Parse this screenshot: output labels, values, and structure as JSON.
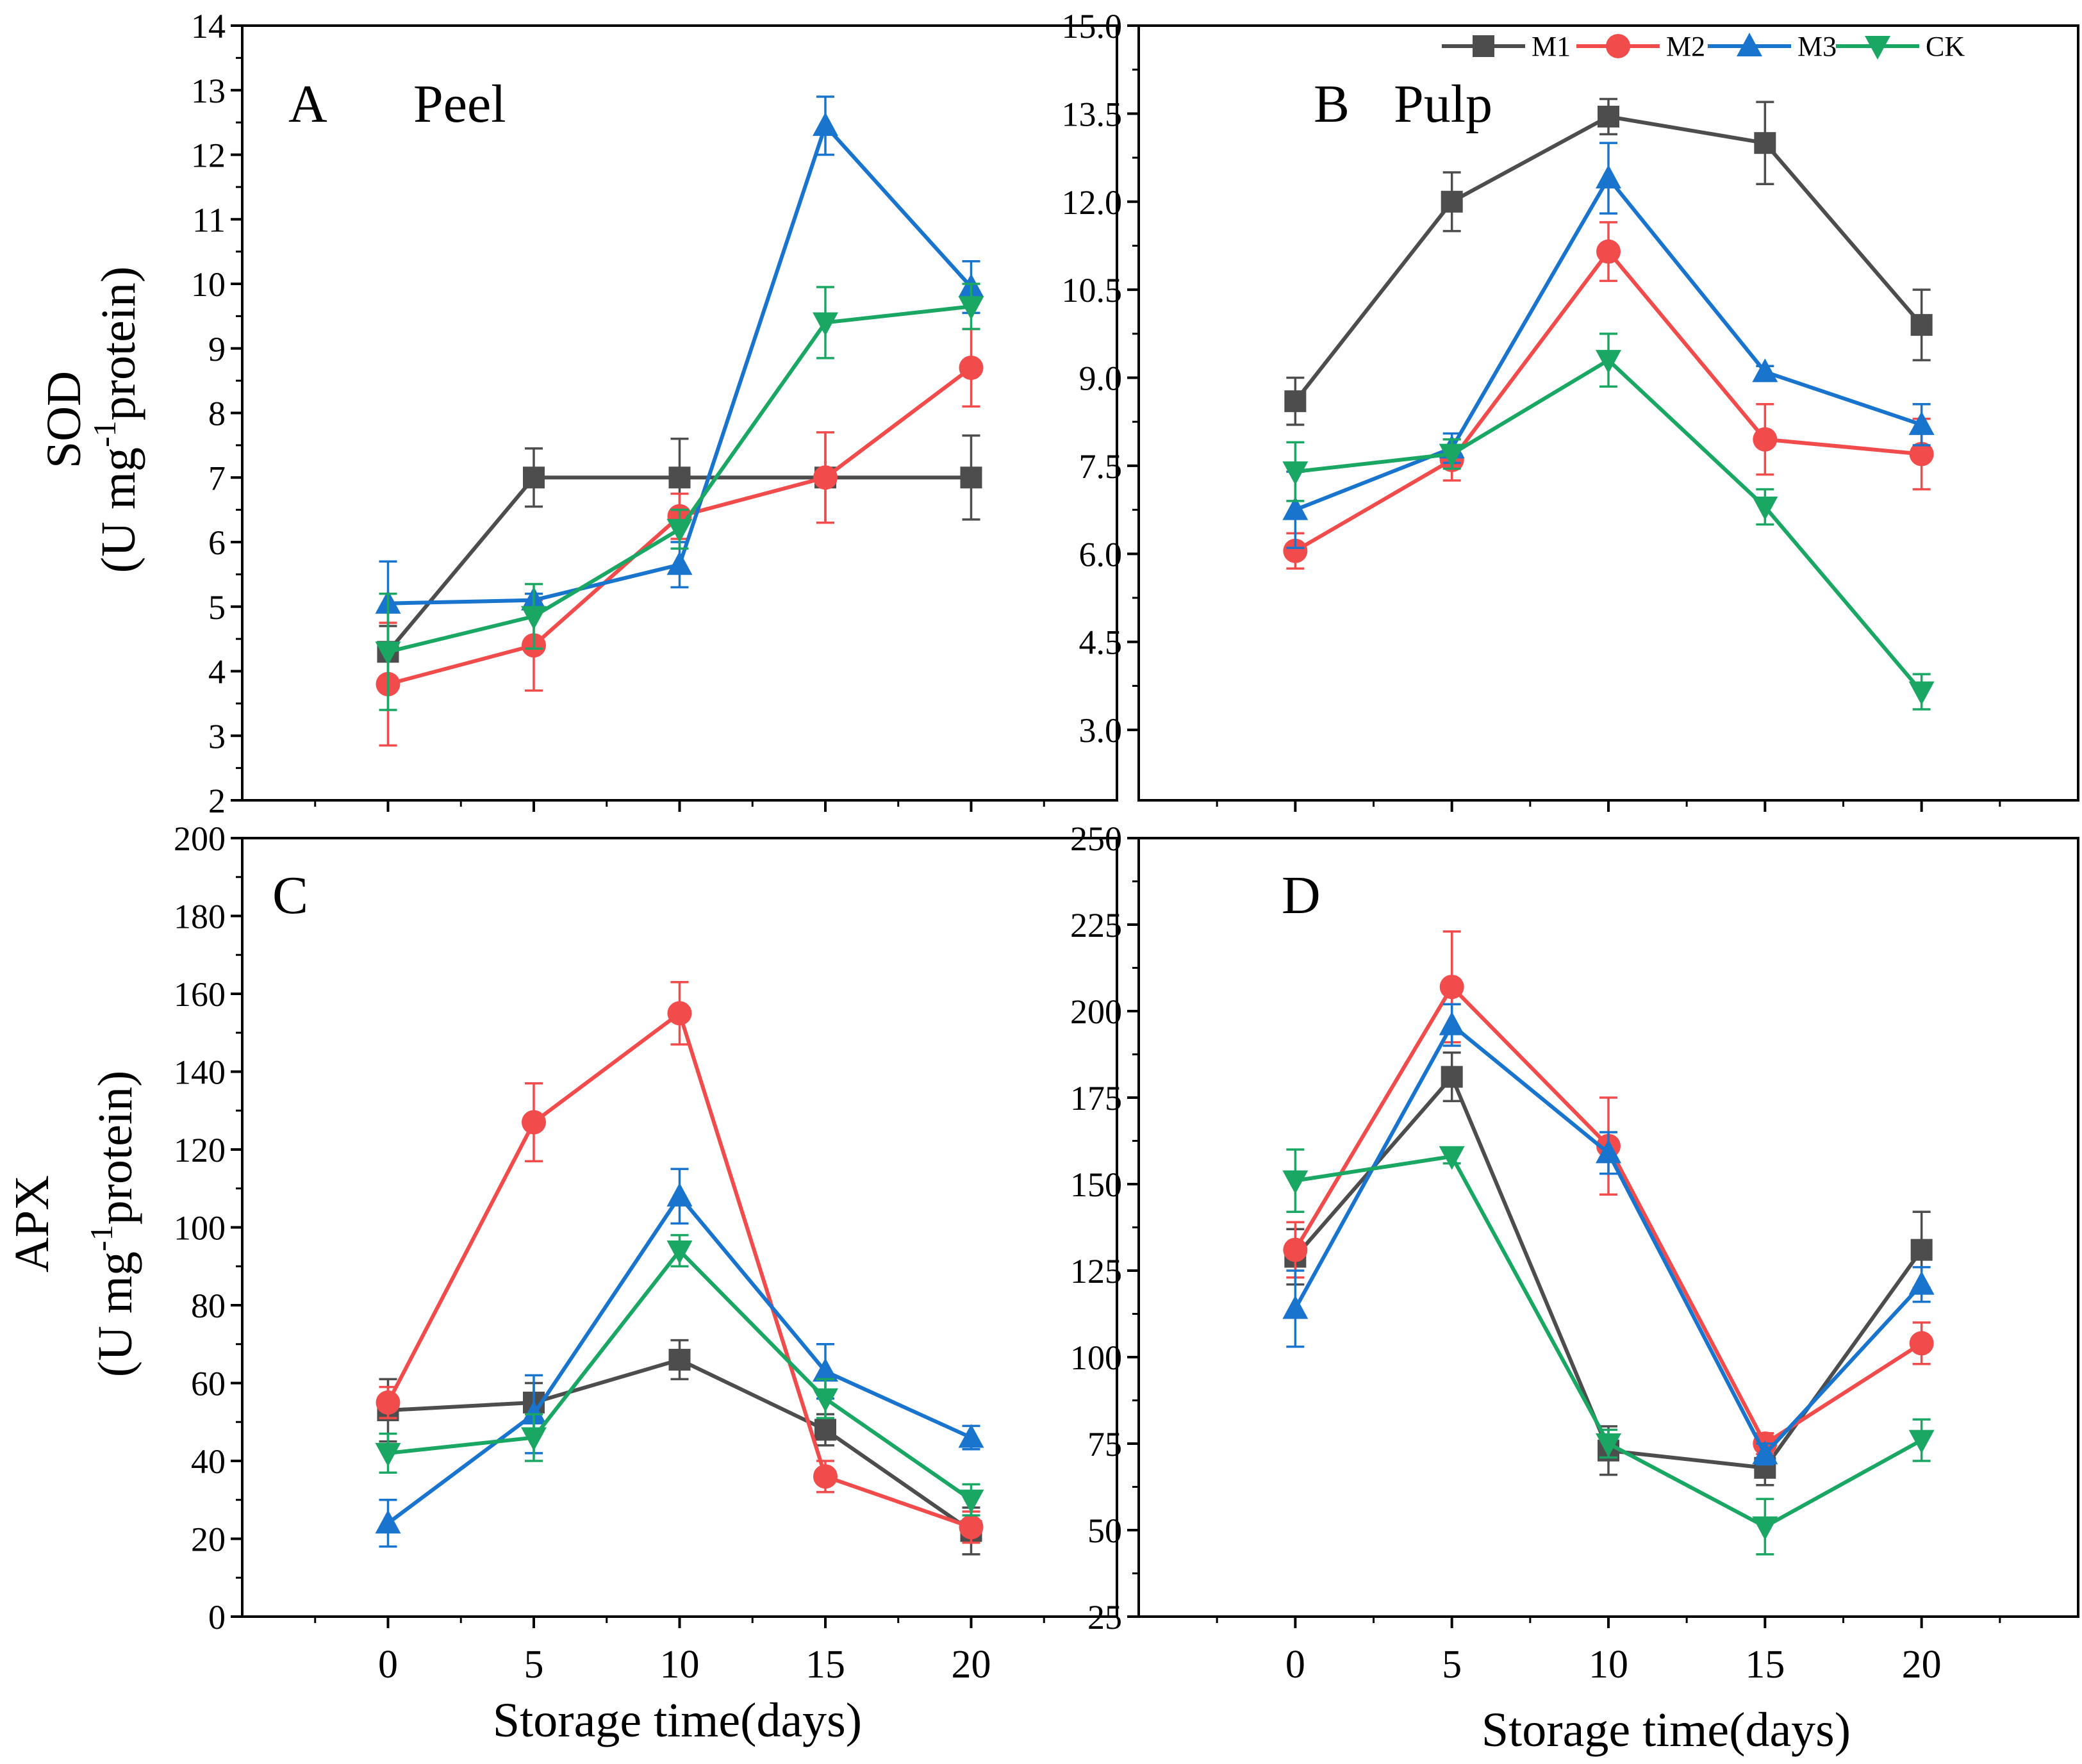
{
  "figure": {
    "x_axis_title": "Storage time(days)",
    "legend": [
      {
        "name": "M1",
        "color": "#4d4d4d",
        "marker": "square"
      },
      {
        "name": "M2",
        "color": "#f24b4b",
        "marker": "circle"
      },
      {
        "name": "M3",
        "color": "#1874cd",
        "marker": "triangle-up"
      },
      {
        "name": "CK",
        "color": "#1aa764",
        "marker": "triangle-down"
      }
    ],
    "ylabels": {
      "sod": {
        "main": "SOD",
        "unit_pre": "(U mg",
        "unit_sup": "-1",
        "unit_post": "protein)"
      },
      "apx": {
        "main": "APX",
        "unit_pre": "(U mg",
        "unit_sup": "-1",
        "unit_post": "protein)"
      }
    }
  },
  "chart_data": [
    {
      "panel": "A",
      "title": "Peel",
      "type": "line",
      "xlabel": "",
      "ylabel": "SOD (U mg-1 protein)",
      "x": [
        0,
        5,
        10,
        15,
        20
      ],
      "xlim": [
        -5,
        25
      ],
      "ylim": [
        2,
        14
      ],
      "yticks": [
        2,
        3,
        4,
        5,
        6,
        7,
        8,
        9,
        10,
        11,
        12,
        13,
        14
      ],
      "yticklabels": [
        "2",
        "3",
        "4",
        "5",
        "6",
        "7",
        "8",
        "9",
        "10",
        "11",
        "12",
        "13",
        "14"
      ],
      "xticks": [],
      "series": [
        {
          "name": "M1",
          "values": [
            4.3,
            7.0,
            7.0,
            7.0,
            7.0
          ],
          "errors": [
            0.4,
            0.45,
            0.6,
            0.7,
            0.65
          ]
        },
        {
          "name": "M2",
          "values": [
            3.8,
            4.4,
            6.4,
            7.0,
            8.7
          ],
          "errors": [
            0.95,
            0.7,
            0.35,
            0.7,
            0.6
          ]
        },
        {
          "name": "M3",
          "values": [
            5.05,
            5.1,
            5.65,
            12.45,
            9.95
          ],
          "errors": [
            0.65,
            0.1,
            0.35,
            0.45,
            0.4
          ]
        },
        {
          "name": "CK",
          "values": [
            4.3,
            4.85,
            6.2,
            9.4,
            9.65
          ],
          "errors": [
            0.9,
            0.5,
            0.3,
            0.55,
            0.35
          ]
        }
      ]
    },
    {
      "panel": "B",
      "title": "Pulp",
      "type": "line",
      "xlabel": "",
      "ylabel": "",
      "x": [
        0,
        5,
        10,
        15,
        20
      ],
      "xlim": [
        -5,
        25
      ],
      "ylim": [
        1.8,
        15.0
      ],
      "yticks": [
        3.0,
        4.5,
        6.0,
        7.5,
        9.0,
        10.5,
        12.0,
        13.5,
        15.0
      ],
      "yticklabels": [
        "3.0",
        "4.5",
        "6.0",
        "7.5",
        "9.0",
        "10.5",
        "12.0",
        "13.5",
        "15.0"
      ],
      "xticks": [],
      "series": [
        {
          "name": "M1",
          "values": [
            8.6,
            12.0,
            13.45,
            13.0,
            9.9
          ],
          "errors": [
            0.4,
            0.5,
            0.3,
            0.7,
            0.6
          ]
        },
        {
          "name": "M2",
          "values": [
            6.05,
            7.6,
            11.15,
            7.95,
            7.7
          ],
          "errors": [
            0.3,
            0.35,
            0.5,
            0.6,
            0.6
          ]
        },
        {
          "name": "M3",
          "values": [
            6.75,
            7.8,
            12.4,
            9.1,
            8.2
          ],
          "errors": [
            0.65,
            0.25,
            0.6,
            0.1,
            0.35
          ]
        },
        {
          "name": "CK",
          "values": [
            7.4,
            7.7,
            9.3,
            6.8,
            3.65
          ],
          "errors": [
            0.5,
            0.25,
            0.45,
            0.3,
            0.3
          ]
        }
      ]
    },
    {
      "panel": "C",
      "title": "",
      "type": "line",
      "xlabel": "Storage time(days)",
      "ylabel": "APX (U mg-1 protein)",
      "x": [
        0,
        5,
        10,
        15,
        20
      ],
      "xlim": [
        -5,
        25
      ],
      "ylim": [
        0,
        200
      ],
      "yticks": [
        0,
        20,
        40,
        60,
        80,
        100,
        120,
        140,
        160,
        180,
        200
      ],
      "yticklabels": [
        "0",
        "20",
        "40",
        "60",
        "80",
        "100",
        "120",
        "140",
        "160",
        "180",
        "200"
      ],
      "xticks": [
        0,
        5,
        10,
        15,
        20
      ],
      "xticklabels": [
        "0",
        "5",
        "10",
        "15",
        "20"
      ],
      "series": [
        {
          "name": "M1",
          "values": [
            53,
            55,
            66,
            48,
            22
          ],
          "errors": [
            8,
            5,
            5,
            4,
            6
          ]
        },
        {
          "name": "M2",
          "values": [
            55,
            127,
            155,
            36,
            23
          ],
          "errors": [
            4,
            10,
            8,
            4,
            4
          ]
        },
        {
          "name": "M3",
          "values": [
            24,
            52,
            108,
            63,
            46
          ],
          "errors": [
            6,
            10,
            7,
            7,
            3
          ]
        },
        {
          "name": "CK",
          "values": [
            42,
            46,
            94,
            56,
            30
          ],
          "errors": [
            5,
            6,
            4,
            5,
            4
          ]
        }
      ]
    },
    {
      "panel": "D",
      "title": "",
      "type": "line",
      "xlabel": "Storage time(days)",
      "ylabel": "",
      "x": [
        0,
        5,
        10,
        15,
        20
      ],
      "xlim": [
        -5,
        25
      ],
      "ylim": [
        25,
        250
      ],
      "yticks": [
        25,
        50,
        75,
        100,
        125,
        150,
        175,
        200,
        225,
        250
      ],
      "yticklabels": [
        "25",
        "50",
        "75",
        "100",
        "125",
        "150",
        "175",
        "200",
        "225",
        "250"
      ],
      "xticks": [
        0,
        5,
        10,
        15,
        20
      ],
      "xticklabels": [
        "0",
        "5",
        "10",
        "15",
        "20"
      ],
      "series": [
        {
          "name": "M1",
          "values": [
            129,
            181,
            73,
            68,
            131
          ],
          "errors": [
            8,
            7,
            7,
            5,
            11
          ]
        },
        {
          "name": "M2",
          "values": [
            131,
            207,
            161,
            75,
            104
          ],
          "errors": [
            8,
            16,
            14,
            3,
            6
          ]
        },
        {
          "name": "M3",
          "values": [
            114,
            196,
            159,
            72,
            121
          ],
          "errors": [
            11,
            6,
            6,
            3,
            5
          ]
        },
        {
          "name": "CK",
          "values": [
            151,
            158,
            75,
            51,
            76
          ],
          "errors": [
            9,
            2,
            4,
            8,
            6
          ]
        }
      ]
    }
  ]
}
